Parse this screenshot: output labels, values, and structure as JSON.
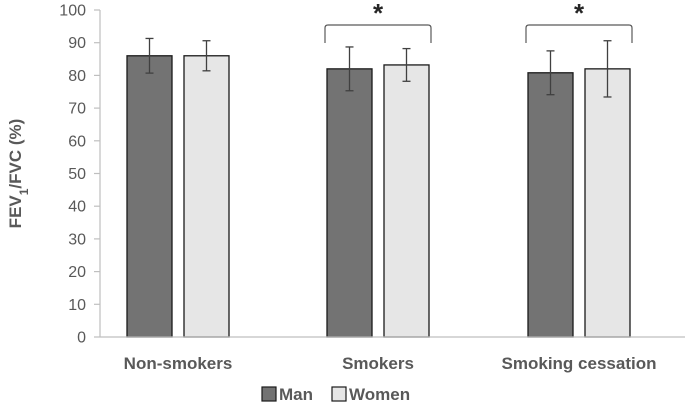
{
  "chart_data": {
    "type": "bar",
    "title": "",
    "xlabel": "",
    "ylabel": "FEV1/FVC (%)",
    "ylabel_parts": {
      "before": "FEV",
      "sub": "1",
      "after": "/FVC (%)"
    },
    "ylim": [
      0,
      100
    ],
    "yticks": [
      "0",
      "10",
      "20",
      "30",
      "40",
      "50",
      "60",
      "70",
      "80",
      "90",
      "100"
    ],
    "grid": false,
    "legend_position": "bottom",
    "categories": [
      "Non-smokers",
      "Smokers",
      "Smoking cessation"
    ],
    "series": [
      {
        "name": "Man",
        "color": "#737373",
        "values": [
          86,
          82,
          80.8
        ],
        "error": [
          5.3,
          6.7,
          6.7
        ]
      },
      {
        "name": "Women",
        "color": "#e6e6e6",
        "values": [
          86,
          83.2,
          82
        ],
        "error": [
          4.6,
          5.0,
          8.6
        ]
      }
    ],
    "annotations": [
      {
        "category": "Smokers",
        "text": "*",
        "type": "significance-bracket"
      },
      {
        "category": "Smoking cessation",
        "text": "*",
        "type": "significance-bracket"
      }
    ]
  }
}
